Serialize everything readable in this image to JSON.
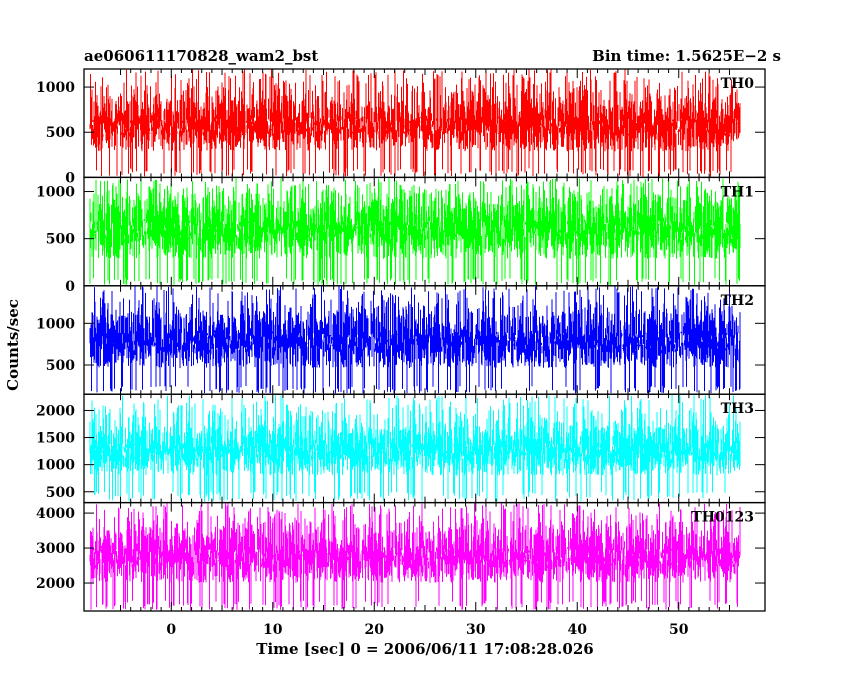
{
  "chart_data": {
    "type": "line",
    "title": "ae060611170828_wam2_bst",
    "subtitle": "Bin time: 1.5625E−2 s",
    "xlabel": "Time [sec] 0 = 2006/06/11 17:08:28.026",
    "ylabel": "Counts/sec",
    "xlim": [
      -8.6,
      58.5
    ],
    "x_data_range": [
      -8.0,
      56.0
    ],
    "x_ticks": [
      0,
      10,
      20,
      30,
      40,
      50
    ],
    "x_tick_labels": [
      "0",
      "10",
      "20",
      "30",
      "40",
      "50"
    ],
    "grid": false,
    "panels": [
      {
        "name": "TH0",
        "color": "#ff0000",
        "ylim": [
          0,
          1200
        ],
        "y_ticks": [
          0,
          500,
          1000
        ],
        "y_tick_labels": [
          "0",
          "500",
          "1000"
        ],
        "typical_range": [
          100,
          850
        ],
        "max_spike": 1200
      },
      {
        "name": "TH1",
        "color": "#00ff00",
        "ylim": [
          0,
          1150
        ],
        "y_ticks": [
          0,
          500,
          1000
        ],
        "y_tick_labels": [
          "0",
          "500",
          "1000"
        ],
        "typical_range": [
          80,
          900
        ],
        "max_spike": 1150
      },
      {
        "name": "TH2",
        "color": "#0000ff",
        "ylim": [
          150,
          1450
        ],
        "y_ticks": [
          500,
          1000
        ],
        "y_tick_labels": [
          "500",
          "1000"
        ],
        "typical_range": [
          250,
          1100
        ],
        "max_spike": 1450
      },
      {
        "name": "TH3",
        "color": "#00ffff",
        "ylim": [
          300,
          2300
        ],
        "y_ticks": [
          500,
          1000,
          1500,
          2000
        ],
        "y_tick_labels": [
          "500",
          "1000",
          "1500",
          "2000"
        ],
        "typical_range": [
          500,
          1700
        ],
        "max_spike": 2300
      },
      {
        "name": "TH0123",
        "color": "#ff00ff",
        "ylim": [
          1200,
          4300
        ],
        "y_ticks": [
          2000,
          3000,
          4000
        ],
        "y_tick_labels": [
          "2000",
          "3000",
          "4000"
        ],
        "typical_range": [
          1500,
          3500
        ],
        "max_spike": 4300
      }
    ]
  }
}
